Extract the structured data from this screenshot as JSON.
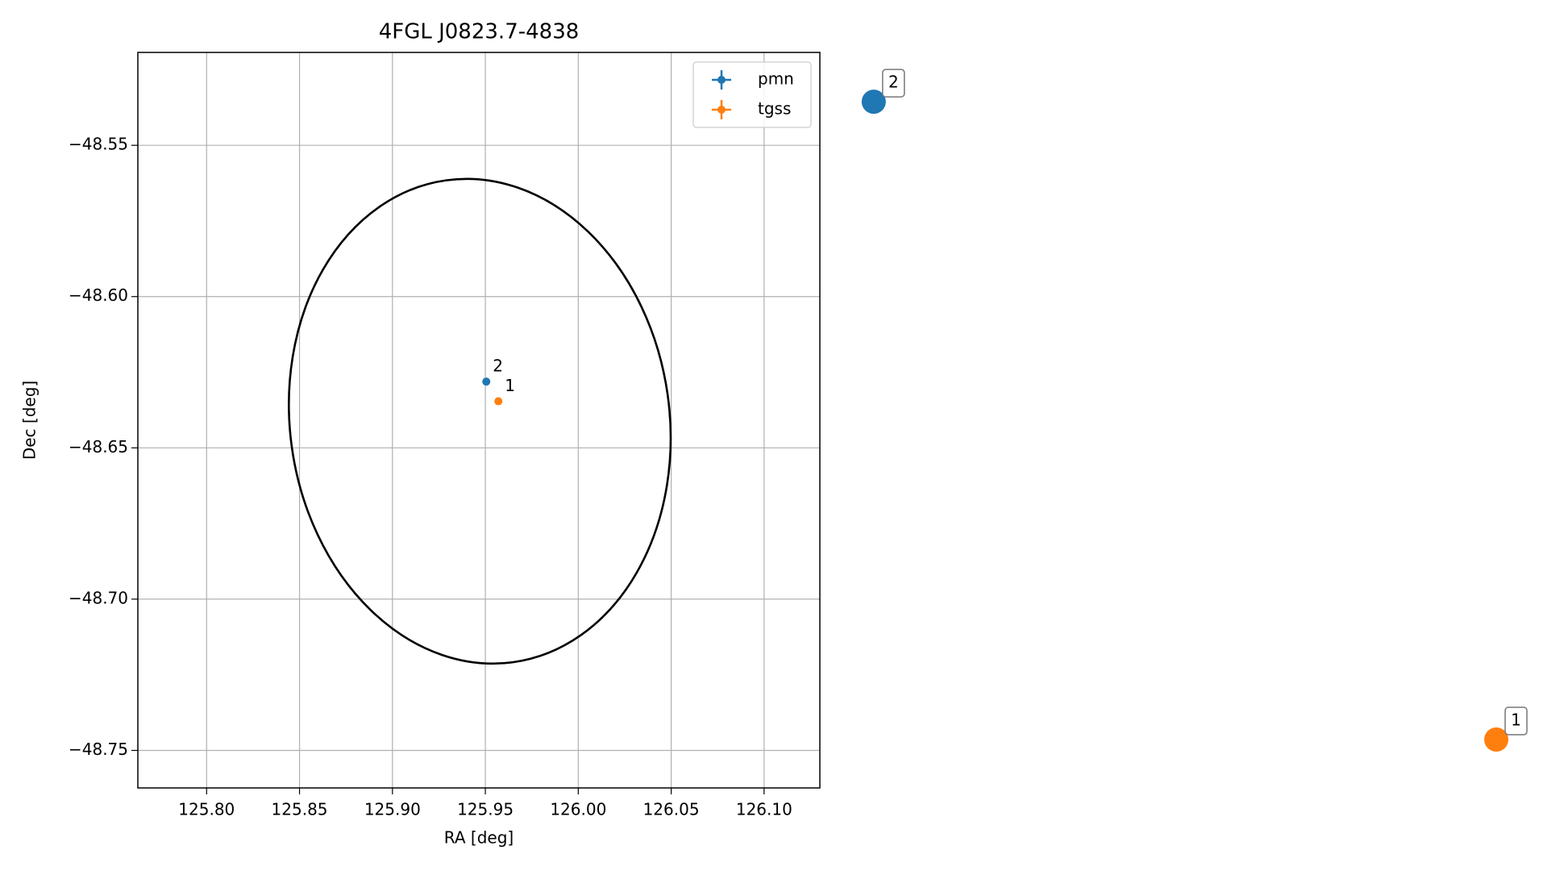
{
  "chart_data": {
    "type": "scatter",
    "title": "4FGL J0823.7-4838",
    "xlabel": "RA [deg]",
    "ylabel": "Dec [deg]",
    "xlim": [
      125.763,
      126.13
    ],
    "ylim": [
      -48.7624,
      -48.5193
    ],
    "xticks": [
      {
        "value": 125.8,
        "label": "125.80"
      },
      {
        "value": 125.85,
        "label": "125.85"
      },
      {
        "value": 125.9,
        "label": "125.90"
      },
      {
        "value": 125.95,
        "label": "125.95"
      },
      {
        "value": 126.0,
        "label": "126.00"
      },
      {
        "value": 126.05,
        "label": "126.05"
      },
      {
        "value": 126.1,
        "label": "126.10"
      }
    ],
    "yticks": [
      {
        "value": -48.55,
        "label": "−48.55"
      },
      {
        "value": -48.6,
        "label": "−48.60"
      },
      {
        "value": -48.65,
        "label": "−48.65"
      },
      {
        "value": -48.7,
        "label": "−48.70"
      },
      {
        "value": -48.75,
        "label": "−48.75"
      }
    ],
    "grid": true,
    "legend": "upper right",
    "series": [
      {
        "name": "pmn",
        "color": "#1f77b4",
        "x": [
          125.9505
        ],
        "values": [
          -48.6281
        ],
        "labels": [
          "2"
        ]
      },
      {
        "name": "tgss",
        "color": "#ff7f0e",
        "x": [
          125.957
        ],
        "values": [
          -48.6346
        ],
        "labels": [
          "1"
        ]
      }
    ],
    "ellipse": {
      "center_x": 125.947,
      "center_y": -48.6412,
      "semi_x": 0.1021,
      "semi_y": 0.0804,
      "angle": -8,
      "color": "#000000"
    },
    "annotations": [
      {
        "label": "2",
        "x": 126.159,
        "y": -48.5356,
        "color": "#1f77b4"
      },
      {
        "label": "1",
        "x": 126.494,
        "y": -48.7464,
        "color": "#ff7f0e"
      }
    ]
  }
}
